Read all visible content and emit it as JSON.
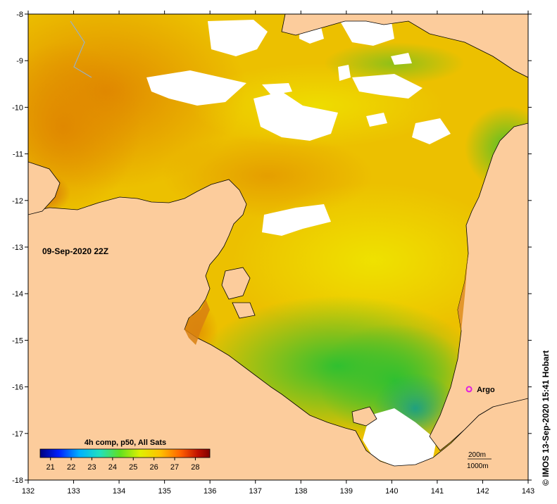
{
  "map": {
    "timestamp": "09-Sep-2020 22Z",
    "credit": "© IMOS 13-Sep-2020 15:41 Hobart",
    "lon_ticks": [
      "132",
      "133",
      "134",
      "135",
      "136",
      "137",
      "138",
      "139",
      "140",
      "141",
      "142",
      "143"
    ],
    "lat_ticks": [
      "-8",
      "-9",
      "-10",
      "-11",
      "-12",
      "-13",
      "-14",
      "-15",
      "-16",
      "-17",
      "-18"
    ],
    "lon_range": [
      132,
      143
    ],
    "lat_range": [
      -18,
      -8
    ],
    "argo": {
      "label": "Argo",
      "lon": 141.7,
      "lat": -16.05,
      "color": "#e020e0"
    },
    "contours": {
      "shallow": "200m",
      "deep": "1000m"
    },
    "colors": {
      "land": "#fccc9c",
      "cloud": "#ffffff"
    }
  },
  "colorbar": {
    "title": "4h comp, p50, All Sats",
    "ticks": [
      "21",
      "22",
      "23",
      "24",
      "25",
      "26",
      "27",
      "28"
    ],
    "range": [
      20.5,
      28.7
    ],
    "stops": [
      "#00007f",
      "#0020ff",
      "#00b0ff",
      "#20e0c0",
      "#60e020",
      "#e0f000",
      "#ffc000",
      "#ff6000",
      "#c01000",
      "#800000"
    ]
  }
}
